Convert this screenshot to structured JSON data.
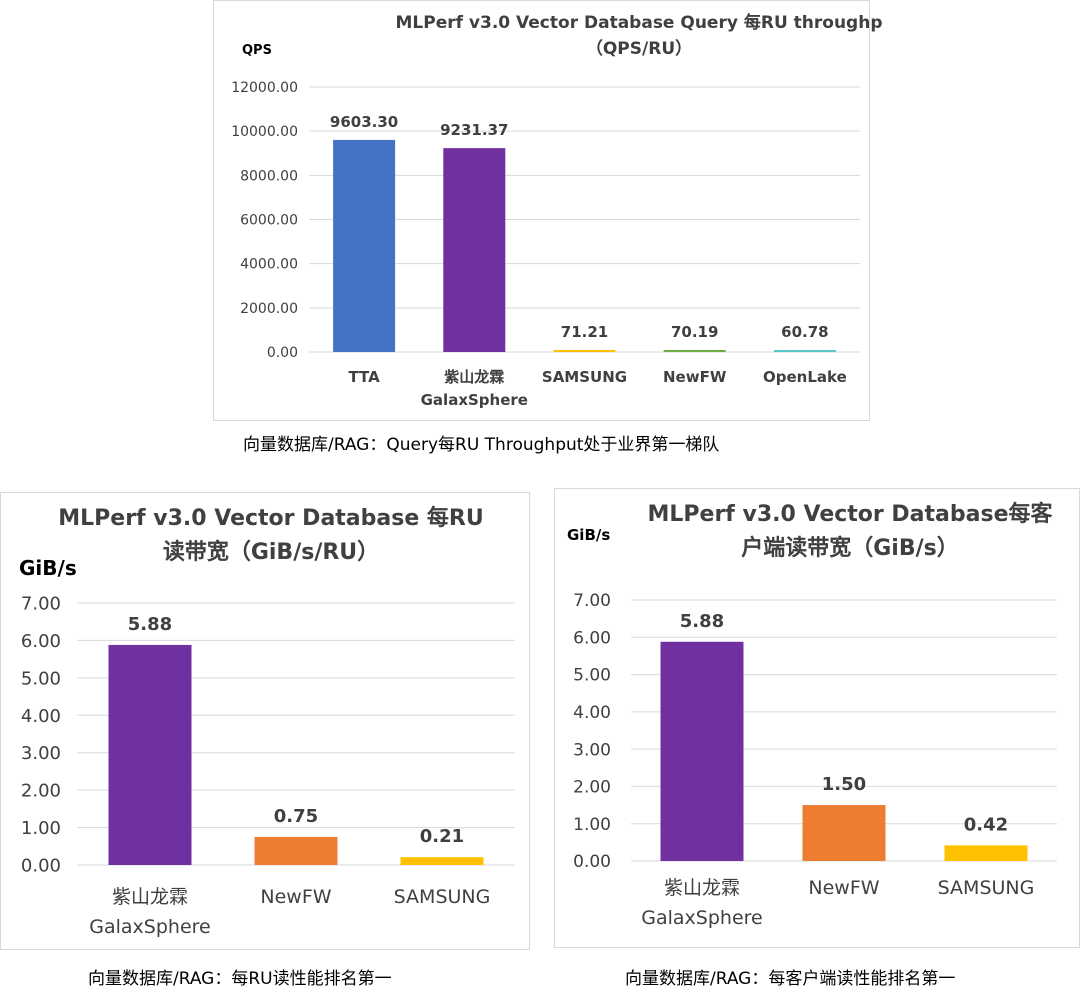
{
  "chart_data": [
    {
      "type": "bar",
      "title": [
        "MLPerf v3.0 Vector Database Query 每RU throughp",
        "（QPS/RU）"
      ],
      "ylabel": "QPS",
      "ylim": [
        0,
        12000
      ],
      "yticks": [
        "0.00",
        "2000.00",
        "4000.00",
        "6000.00",
        "8000.00",
        "10000.00",
        "12000.00"
      ],
      "categories": [
        [
          "TTA"
        ],
        [
          "紫山龙霖",
          "GalaxSphere"
        ],
        [
          "SAMSUNG"
        ],
        [
          "NewFW"
        ],
        [
          "OpenLake"
        ]
      ],
      "values": [
        9603.3,
        9231.37,
        71.21,
        70.19,
        60.78
      ],
      "value_labels": [
        "9603.30",
        "9231.37",
        "71.21",
        "70.19",
        "60.78"
      ],
      "colors": [
        "#4472c4",
        "#7030a0",
        "#ffc000",
        "#70ad47",
        "#5bc8c8"
      ],
      "grid": true
    },
    {
      "type": "bar",
      "title": [
        "MLPerf v3.0 Vector Database 每RU",
        "读带宽（GiB/s/RU）"
      ],
      "ylabel": "GiB/s",
      "ylim": [
        0,
        7
      ],
      "yticks": [
        "0.00",
        "1.00",
        "2.00",
        "3.00",
        "4.00",
        "5.00",
        "6.00",
        "7.00"
      ],
      "categories": [
        [
          "紫山龙霖",
          "GalaxSphere"
        ],
        [
          "NewFW"
        ],
        [
          "SAMSUNG"
        ]
      ],
      "values": [
        5.88,
        0.75,
        0.21
      ],
      "value_labels": [
        "5.88",
        "0.75",
        "0.21"
      ],
      "colors": [
        "#7030a0",
        "#ed7d31",
        "#ffc000"
      ],
      "grid": true
    },
    {
      "type": "bar",
      "title": [
        "MLPerf v3.0 Vector Database每客",
        "户端读带宽（GiB/s）"
      ],
      "ylabel": "GiB/s",
      "ylim": [
        0,
        7
      ],
      "yticks": [
        "0.00",
        "1.00",
        "2.00",
        "3.00",
        "4.00",
        "5.00",
        "6.00",
        "7.00"
      ],
      "categories": [
        [
          "紫山龙霖",
          "GalaxSphere"
        ],
        [
          "NewFW"
        ],
        [
          "SAMSUNG"
        ]
      ],
      "values": [
        5.88,
        1.5,
        0.42
      ],
      "value_labels": [
        "5.88",
        "1.50",
        "0.42"
      ],
      "colors": [
        "#7030a0",
        "#ed7d31",
        "#ffc000"
      ],
      "grid": true
    }
  ],
  "captions": {
    "top": "向量数据库/RAG：Query每RU Throughput处于业界第一梯队",
    "left": "向量数据库/RAG：每RU读性能排名第一",
    "right": "向量数据库/RAG：每客户端读性能排名第一"
  }
}
